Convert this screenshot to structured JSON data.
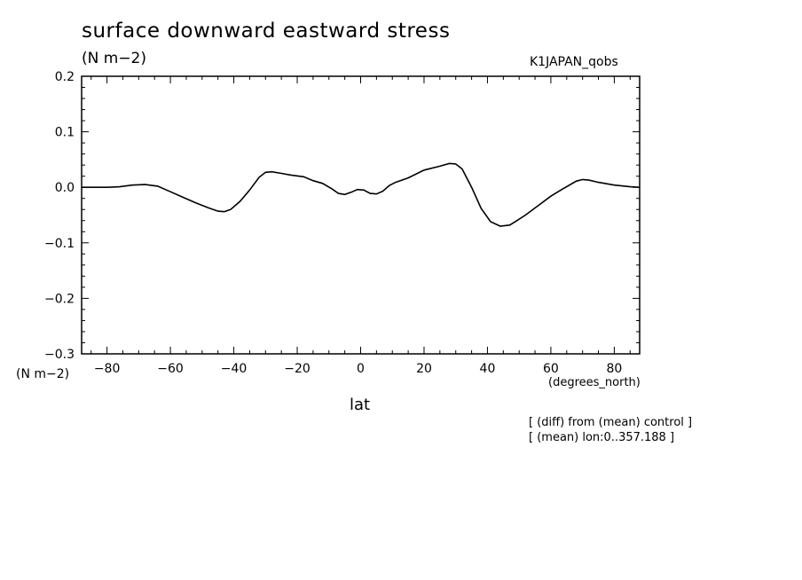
{
  "title": "surface downward eastward stress",
  "units": "(N m−2)",
  "run_label": "K1JAPAN_qobs",
  "y_axis_label": "(N m−2)",
  "x_axis_units": "(degrees_north)",
  "x_axis_label": "lat",
  "notes": [
    "[ (diff) from (mean) control ]",
    "[ (mean) lon:0..357.188 ]"
  ],
  "chart_data": {
    "type": "line",
    "xlim": [
      -88,
      88
    ],
    "ylim": [
      -0.3,
      0.2
    ],
    "x_ticks": [
      -80,
      -60,
      -40,
      -20,
      0,
      20,
      40,
      60,
      80
    ],
    "x_tick_labels": [
      "−80",
      "−60",
      "−40",
      "−20",
      "0",
      "20",
      "40",
      "60",
      "80"
    ],
    "y_ticks": [
      0.2,
      0.1,
      0.0,
      -0.1,
      -0.2,
      -0.3
    ],
    "y_tick_labels": [
      "0.2",
      "0.1",
      "0.0",
      "−0.1",
      "−0.2",
      "−0.3"
    ],
    "grid": false,
    "series": [
      {
        "x": [
          -88,
          -85,
          -80,
          -76,
          -72,
          -68,
          -64,
          -60,
          -56,
          -52,
          -48,
          -45,
          -43,
          -41,
          -38,
          -35,
          -32,
          -30,
          -28,
          -25,
          -22,
          -18,
          -15,
          -12,
          -9,
          -7,
          -5,
          -3,
          -1,
          1,
          3,
          5,
          7,
          9,
          11,
          15,
          20,
          25,
          28,
          30,
          32,
          35,
          38,
          41,
          44,
          47,
          49,
          52,
          56,
          60,
          64,
          68,
          70,
          72,
          75,
          80,
          85,
          88
        ],
        "y": [
          0.0,
          0.0,
          0.0,
          0.001,
          0.004,
          0.005,
          0.002,
          -0.008,
          -0.018,
          -0.028,
          -0.037,
          -0.043,
          -0.044,
          -0.04,
          -0.025,
          -0.005,
          0.018,
          0.027,
          0.028,
          0.025,
          0.022,
          0.019,
          0.012,
          0.007,
          -0.003,
          -0.011,
          -0.013,
          -0.009,
          -0.004,
          -0.005,
          -0.011,
          -0.012,
          -0.007,
          0.003,
          0.009,
          0.017,
          0.031,
          0.038,
          0.043,
          0.042,
          0.033,
          0.0,
          -0.038,
          -0.062,
          -0.07,
          -0.068,
          -0.061,
          -0.05,
          -0.033,
          -0.016,
          -0.002,
          0.011,
          0.014,
          0.013,
          0.009,
          0.004,
          0.001,
          0.0
        ],
        "color": "#000000"
      }
    ]
  }
}
